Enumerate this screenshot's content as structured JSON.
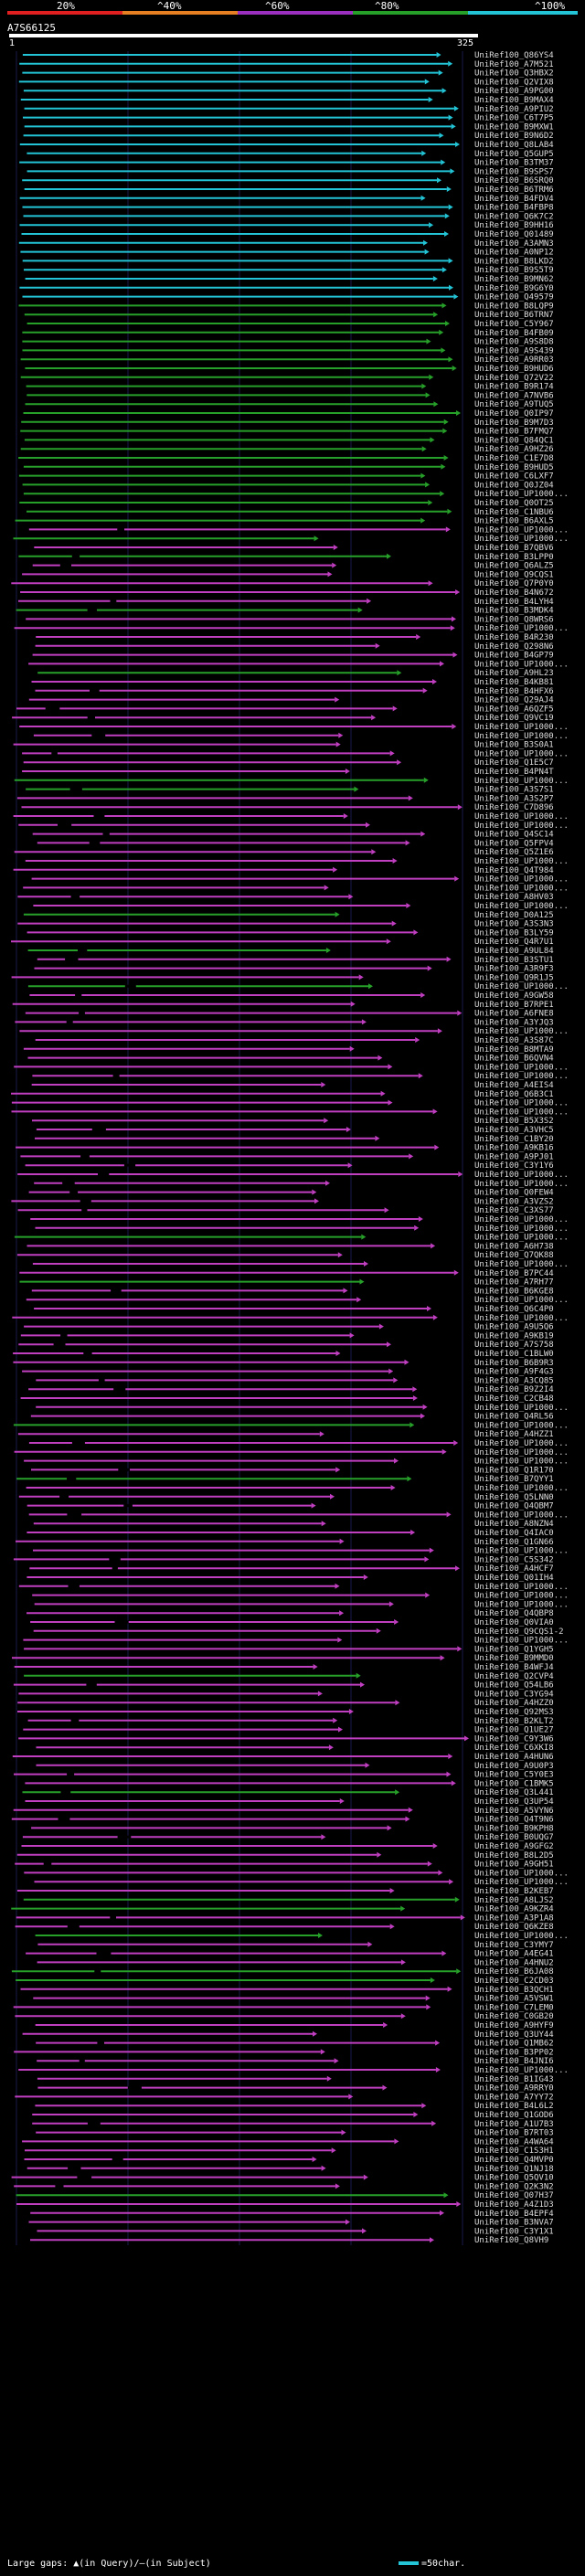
{
  "query": {
    "id": "A7S66125",
    "start": "1",
    "end": "325"
  },
  "legend": {
    "items": [
      {
        "label": "20%",
        "color": "#e02020"
      },
      {
        "label": "^40%",
        "color": "#e67e22"
      },
      {
        "label": "^60%",
        "color": "#9b30c0"
      },
      {
        "label": "^80%",
        "color": "#27a02a"
      },
      {
        "label": "^100%",
        "color": "#22c4d6"
      }
    ]
  },
  "footer": {
    "text": "Large gaps: ▲(in Query)/—(in Subject)",
    "scale_text": "=50char."
  },
  "hits": {
    "labels": [
      "UniRef100_Q86YS4",
      "UniRef100_A7M521",
      "UniRef100_Q3HBX2",
      "UniRef100_Q2VIX8",
      "UniRef100_A9PG00",
      "UniRef100_B9MAX4",
      "UniRef100_A9PIU2",
      "UniRef100_C6T7P5",
      "UniRef100_B9MXW1",
      "UniRef100_B9N6D2",
      "UniRef100_Q8LAB4",
      "UniRef100_Q5GUP5",
      "UniRef100_B3TM37",
      "UniRef100_B9SPS7",
      "UniRef100_B6SRQ0",
      "UniRef100_B6TRM6",
      "UniRef100_B4FDV4",
      "UniRef100_B4FBP8",
      "UniRef100_Q6K7C2",
      "UniRef100_B9HH16",
      "UniRef100_Q01489",
      "UniRef100_A3AMN3",
      "UniRef100_A0NP12",
      "UniRef100_B8LKD2",
      "UniRef100_B9S5T9",
      "UniRef100_B9MN62",
      "UniRef100_B9G6Y0",
      "UniRef100_Q49579",
      "UniRef100_B8LQP9",
      "UniRef100_B6TRN7",
      "UniRef100_C5Y967",
      "UniRef100_B4FB09",
      "UniRef100_A9S8D8",
      "UniRef100_A9S439",
      "UniRef100_A9RR03",
      "UniRef100_B9HUD6",
      "UniRef100_Q72V22",
      "UniRef100_B9R174",
      "UniRef100_A7NVB6",
      "UniRef100_A9TUQ5",
      "UniRef100_Q0IP97",
      "UniRef100_B9M7D3",
      "UniRef100_B7FMQ7",
      "UniRef100_Q84QC1",
      "UniRef100_A9HZ26",
      "UniRef100_C1E7D8",
      "UniRef100_B9HUD5",
      "UniRef100_C6LXF7",
      "UniRef100_Q0JZ04",
      "UniRef100_UP1000...",
      "UniRef100_Q0OT25",
      "UniRef100_C1NBU6",
      "UniRef100_B6AXL5",
      "UniRef100_UP1000...",
      "UniRef100_UP1000...",
      "UniRef100_B7QBV6",
      "UniRef100_B3LPP0",
      "UniRef100_Q6ALZ5",
      "UniRef100_Q9CQS1",
      "UniRef100_Q7P0Y0",
      "UniRef100_B4N672",
      "UniRef100_B4LYH4",
      "UniRef100_B3MDK4",
      "UniRef100_Q8WRS6",
      "UniRef100_UP1000...",
      "UniRef100_B4R230",
      "UniRef100_Q298N6",
      "UniRef100_B4GP79",
      "UniRef100_UP1000...",
      "UniRef100_A9HL23",
      "UniRef100_B4KB81",
      "UniRef100_B4HFX6",
      "UniRef100_Q29AJ4",
      "UniRef100_A6QZF5",
      "UniRef100_Q9VC19",
      "UniRef100_UP1000...",
      "UniRef100_UP1000...",
      "UniRef100_B3S0A1",
      "UniRef100_UP1000...",
      "UniRef100_Q1E5C7",
      "UniRef100_B4PN4T",
      "UniRef100_UP1000...",
      "UniRef100_A3S7S1",
      "UniRef100_A3S2P7",
      "UniRef100_C7D896",
      "UniRef100_UP1000...",
      "UniRef100_UP1000...",
      "UniRef100_Q4SC14",
      "UniRef100_Q5FPV4",
      "UniRef100_Q5Z1E6",
      "UniRef100_UP1000...",
      "UniRef100_Q4T984",
      "UniRef100_UP1000...",
      "UniRef100_UP1000...",
      "UniRef100_A8HV03",
      "UniRef100_UP1000...",
      "UniRef100_D0A125",
      "UniRef100_A3S3N3",
      "UniRef100_B3LY59",
      "UniRef100_Q4R7U1",
      "UniRef100_A9UL84",
      "UniRef100_B3STU1",
      "UniRef100_A3R9F3",
      "UniRef100_Q9R1J5",
      "UniRef100_UP1000...",
      "UniRef100_A9GW58",
      "UniRef100_B7RPE1",
      "UniRef100_A6FNE8",
      "UniRef100_A3YJQ3",
      "UniRef100_UP1000...",
      "UniRef100_A3S87C",
      "UniRef100_B8MTA9",
      "UniRef100_B6QVN4",
      "UniRef100_UP1000...",
      "UniRef100_UP1000...",
      "UniRef100_A4EIS4",
      "UniRef100_Q6B3C1",
      "UniRef100_UP1000...",
      "UniRef100_UP1000...",
      "UniRef100_B5X3S2",
      "UniRef100_A3VHC5",
      "UniRef100_C1BY20",
      "UniRef100_A9KB16",
      "UniRef100_A9PJ01",
      "UniRef100_C3Y1Y6",
      "UniRef100_UP1000...",
      "UniRef100_UP1000...",
      "UniRef100_Q0FEW4",
      "UniRef100_A3VZS2",
      "UniRef100_C3XS77",
      "UniRef100_UP1000...",
      "UniRef100_UP1000...",
      "UniRef100_UP1000...",
      "UniRef100_A6H738",
      "UniRef100_Q7QK88",
      "UniRef100_UP1000...",
      "UniRef100_B7PC44",
      "UniRef100_A7RH77",
      "UniRef100_B6KGE8",
      "UniRef100_UP1000...",
      "UniRef100_Q6C4P0",
      "UniRef100_UP1000...",
      "UniRef100_A9U5Q6",
      "UniRef100_A9KB19",
      "UniRef100_A7S758",
      "UniRef100_C1BLW0",
      "UniRef100_B6B9R3",
      "UniRef100_A9F4G3",
      "UniRef100_A3CQ85",
      "UniRef100_B9Z2I4",
      "UniRef100_C2CB48",
      "UniRef100_UP1000...",
      "UniRef100_Q4RL56",
      "UniRef100_UP1000...",
      "UniRef100_A4HZZ1",
      "UniRef100_UP1000...",
      "UniRef100_UP1000...",
      "UniRef100_UP1000...",
      "UniRef100_Q1R170",
      "UniRef100_B7QYY1",
      "UniRef100_UP1000...",
      "UniRef100_Q5LNN0",
      "UniRef100_Q4QBM7",
      "UniRef100_UP1000...",
      "UniRef100_A8NZN4",
      "UniRef100_Q4IAC0",
      "UniRef100_Q1GN66",
      "UniRef100_UP1000...",
      "UniRef100_C5S342",
      "UniRef100_A4HCF7",
      "UniRef100_Q01IH4",
      "UniRef100_UP1000...",
      "UniRef100_UP1000...",
      "UniRef100_UP1000...",
      "UniRef100_Q4QBP8",
      "UniRef100_Q0VIA0",
      "UniRef100_Q9CQS1-2",
      "UniRef100_UP1000...",
      "UniRef100_Q1YGH5",
      "UniRef100_B9MMD0",
      "UniRef100_B4WFJ4",
      "UniRef100_Q2CVP4",
      "UniRef100_Q54LB6",
      "UniRef100_C3YG94",
      "UniRef100_A4HZZ0",
      "UniRef100_Q92MS3",
      "UniRef100_B2KLT2",
      "UniRef100_Q1UE27",
      "UniRef100_C9Y3W6",
      "UniRef100_C6XKI8",
      "UniRef100_A4HUN6",
      "UniRef100_A9U0P3",
      "UniRef100_C5Y0E3",
      "UniRef100_C1BMK5",
      "UniRef100_Q3L441",
      "UniRef100_Q3UP54",
      "UniRef100_A5VYN6",
      "UniRef100_Q4T9N6",
      "UniRef100_B9KPH8",
      "UniRef100_B0UQG7",
      "UniRef100_A9GFG2",
      "UniRef100_B8L2D5",
      "UniRef100_A9GH51",
      "UniRef100_UP1000...",
      "UniRef100_UP1000...",
      "UniRef100_B2KEB7",
      "UniRef100_A8LJS2",
      "UniRef100_A9KZR4",
      "UniRef100_A3P1A8",
      "UniRef100_Q6KZE8",
      "UniRef100_UP1000...",
      "UniRef100_C3YMY7",
      "UniRef100_A4EG41",
      "UniRef100_A4HNU2",
      "UniRef100_B6JA08",
      "UniRef100_C2CD03",
      "UniRef100_B3QCH1",
      "UniRef100_A5VSW1",
      "UniRef100_C7LEM0",
      "UniRef100_C0GB20",
      "UniRef100_A9HYF9",
      "UniRef100_Q3UY44",
      "UniRef100_Q1MB62",
      "UniRef100_B3PP02",
      "UniRef100_B4JNI6",
      "UniRef100_UP1000...",
      "UniRef100_B1IG43",
      "UniRef100_A9RRY0",
      "UniRef100_A7YY72",
      "UniRef100_B4L6L2",
      "UniRef100_Q1GOD6",
      "UniRef100_A1U7B3",
      "UniRef100_B7RT03",
      "UniRef100_A4WA64",
      "UniRef100_C1S3H1",
      "UniRef100_Q4MVP0",
      "UniRef100_Q1NJ18",
      "UniRef100_Q5QV10",
      "UniRef100_Q2K3N2",
      "UniRef100_Q07H37",
      "UniRef100_A4Z1D3",
      "UniRef100_B4EPF4",
      "UniRef100_B3NVA7",
      "UniRef100_C3Y1X1",
      "UniRef100_Q8VH9"
    ]
  }
}
